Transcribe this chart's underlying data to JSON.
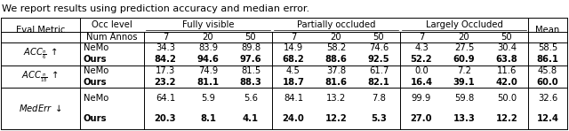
{
  "title": "We report results using prediction accuracy and median error.",
  "bg_color": "#ffffff",
  "text_color": "#000000",
  "rows": [
    {
      "method": "NeMo",
      "values": [
        "34.3",
        "83.9",
        "89.8",
        "14.9",
        "58.2",
        "74.6",
        "4.3",
        "27.5",
        "30.4",
        "58.5"
      ],
      "bold": false
    },
    {
      "method": "Ours",
      "values": [
        "84.2",
        "94.6",
        "97.6",
        "68.2",
        "88.6",
        "92.5",
        "52.2",
        "60.9",
        "63.8",
        "86.1"
      ],
      "bold": true
    },
    {
      "method": "NeMo",
      "values": [
        "17.3",
        "74.9",
        "81.5",
        "4.5",
        "37.8",
        "61.7",
        "0.0",
        "7.2",
        "11.6",
        "45.8"
      ],
      "bold": false
    },
    {
      "method": "Ours",
      "values": [
        "23.2",
        "81.1",
        "88.3",
        "18.7",
        "81.6",
        "82.1",
        "16.4",
        "39.1",
        "42.0",
        "60.0"
      ],
      "bold": true
    },
    {
      "method": "NeMo",
      "values": [
        "64.1",
        "5.9",
        "5.6",
        "84.1",
        "13.2",
        "7.8",
        "99.9",
        "59.8",
        "50.0",
        "32.6"
      ],
      "bold": false
    },
    {
      "method": "Ours",
      "values": [
        "20.3",
        "8.1",
        "4.1",
        "24.0",
        "12.2",
        "5.3",
        "27.0",
        "13.3",
        "12.2",
        "12.4"
      ],
      "bold": true
    }
  ],
  "metric_labels": [
    "$ACC_{\\frac{\\pi}{6}}$ $\\uparrow$",
    "$ACC_{\\frac{\\pi}{18}}$ $\\uparrow$",
    "$MedErr$ $\\downarrow$"
  ],
  "fontsize": 7.2,
  "title_fontsize": 8.0
}
